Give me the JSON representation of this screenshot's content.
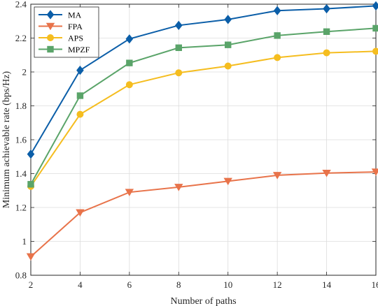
{
  "chart_data": {
    "type": "line",
    "title": "",
    "xlabel": "Number of paths",
    "ylabel": "Minimum achievable rate (bps/Hz)",
    "x": [
      2,
      4,
      6,
      8,
      10,
      12,
      14,
      16
    ],
    "xlim": [
      2,
      16
    ],
    "ylim": [
      0.8,
      2.4
    ],
    "xticks": [
      2,
      4,
      6,
      8,
      10,
      12,
      14,
      16
    ],
    "yticks": [
      0.8,
      1,
      1.2,
      1.4,
      1.6,
      1.8,
      2,
      2.2,
      2.4
    ],
    "xtick_labels": [
      "2",
      "4",
      "6",
      "8",
      "10",
      "12",
      "14",
      "16"
    ],
    "ytick_labels": [
      "0.8",
      "1",
      "1.2",
      "1.4",
      "1.6",
      "1.8",
      "2",
      "2.2",
      "2.4"
    ],
    "grid": true,
    "legend_position": "top-left",
    "series": [
      {
        "name": "MA",
        "marker": "diamond",
        "color": "#0b5ea8",
        "values": [
          1.515,
          2.01,
          2.195,
          2.275,
          2.31,
          2.362,
          2.373,
          2.39
        ]
      },
      {
        "name": "FPA",
        "marker": "triangle-down",
        "color": "#e8734a",
        "values": [
          0.91,
          1.17,
          1.29,
          1.32,
          1.355,
          1.39,
          1.403,
          1.41
        ]
      },
      {
        "name": "APS",
        "marker": "circle",
        "color": "#f5bd1f",
        "values": [
          1.325,
          1.75,
          1.925,
          1.995,
          2.035,
          2.085,
          2.113,
          2.122
        ]
      },
      {
        "name": "MPZF",
        "marker": "square",
        "color": "#5aa469",
        "values": [
          1.337,
          1.86,
          2.053,
          2.143,
          2.16,
          2.215,
          2.238,
          2.258
        ]
      }
    ]
  }
}
